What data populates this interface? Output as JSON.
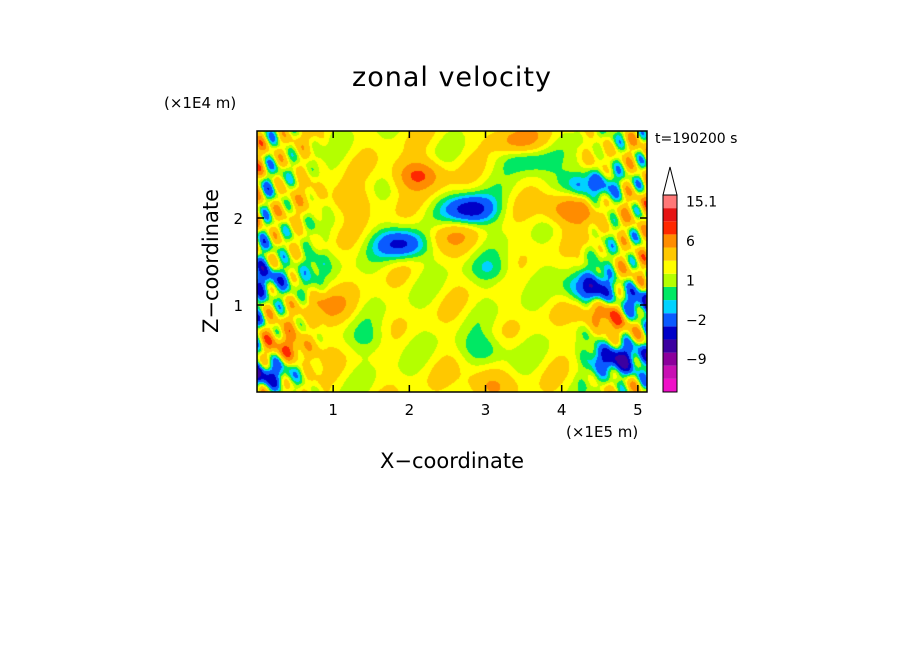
{
  "chart_data": {
    "type": "heatmap",
    "title": "zonal velocity",
    "xlabel": "X−coordinate",
    "ylabel": "Z−coordinate",
    "x_unit": "(×1E5 m)",
    "y_unit": "(×1E4 m)",
    "time_label": "t=190200 s",
    "xlim": [
      0,
      5.12
    ],
    "ylim": [
      0,
      3.0
    ],
    "x_ticks": [
      {
        "value": 1,
        "label": "1"
      },
      {
        "value": 2,
        "label": "2"
      },
      {
        "value": 3,
        "label": "3"
      },
      {
        "value": 4,
        "label": "4"
      },
      {
        "value": 5,
        "label": "5"
      }
    ],
    "y_ticks": [
      {
        "value": 1,
        "label": "1"
      },
      {
        "value": 2,
        "label": "2"
      }
    ],
    "colorbar": {
      "levels": [
        -15.1,
        -12,
        -9,
        -6,
        -4,
        -2,
        -1,
        0,
        1,
        2,
        4,
        6,
        9,
        12,
        15.1
      ],
      "colors": [
        "#ef10c8",
        "#c810b4",
        "#8c009c",
        "#3c00a0",
        "#0000c8",
        "#0a5aff",
        "#00d2ff",
        "#00e864",
        "#b4ff00",
        "#ffff00",
        "#ffc800",
        "#ff8c00",
        "#ff2800",
        "#e61414",
        "#ff7878",
        "#ffc8c8"
      ],
      "labels": [
        {
          "value": 15.1,
          "label": "15.1"
        },
        {
          "value": 6,
          "label": "6"
        },
        {
          "value": 1,
          "label": "1"
        },
        {
          "value": -2,
          "label": "−2"
        },
        {
          "value": -9,
          "label": "−9"
        }
      ]
    },
    "features": [
      {
        "x": 2.1,
        "z": 2.5,
        "amp": 5
      },
      {
        "x": 2.8,
        "z": 2.1,
        "amp": -7
      },
      {
        "x": 1.9,
        "z": 1.7,
        "amp": -6
      },
      {
        "x": 2.5,
        "z": 1.8,
        "amp": 2.5
      },
      {
        "x": 3.1,
        "z": 1.4,
        "amp": -2
      },
      {
        "x": 3.0,
        "z": 0.5,
        "amp": -2.5
      },
      {
        "x": 3.0,
        "z": 0.1,
        "amp": 3
      },
      {
        "x": 4.3,
        "z": 2.4,
        "amp": -5
      },
      {
        "x": 4.1,
        "z": 2.1,
        "amp": 5
      },
      {
        "x": 4.4,
        "z": 1.2,
        "amp": -7
      },
      {
        "x": 4.6,
        "z": 0.9,
        "amp": 6
      },
      {
        "x": 4.7,
        "z": 0.4,
        "amp": -8
      },
      {
        "x": 0.7,
        "z": 1.5,
        "amp": -2
      },
      {
        "x": 0.9,
        "z": 1.0,
        "amp": 3
      },
      {
        "x": 0.5,
        "z": 0.5,
        "amp": 4
      },
      {
        "x": 0.15,
        "z": 1.3,
        "amp": -5
      },
      {
        "x": 0.1,
        "z": 0.2,
        "amp": -6
      },
      {
        "x": 1.2,
        "z": 2.2,
        "amp": 2
      },
      {
        "x": 3.5,
        "z": 2.7,
        "amp": -3
      },
      {
        "x": 1.5,
        "z": 0.6,
        "amp": -1.5
      },
      {
        "x": 5.0,
        "z": 1.0,
        "amp": -6
      },
      {
        "x": 3.4,
        "z": 2.9,
        "amp": 4
      }
    ]
  }
}
